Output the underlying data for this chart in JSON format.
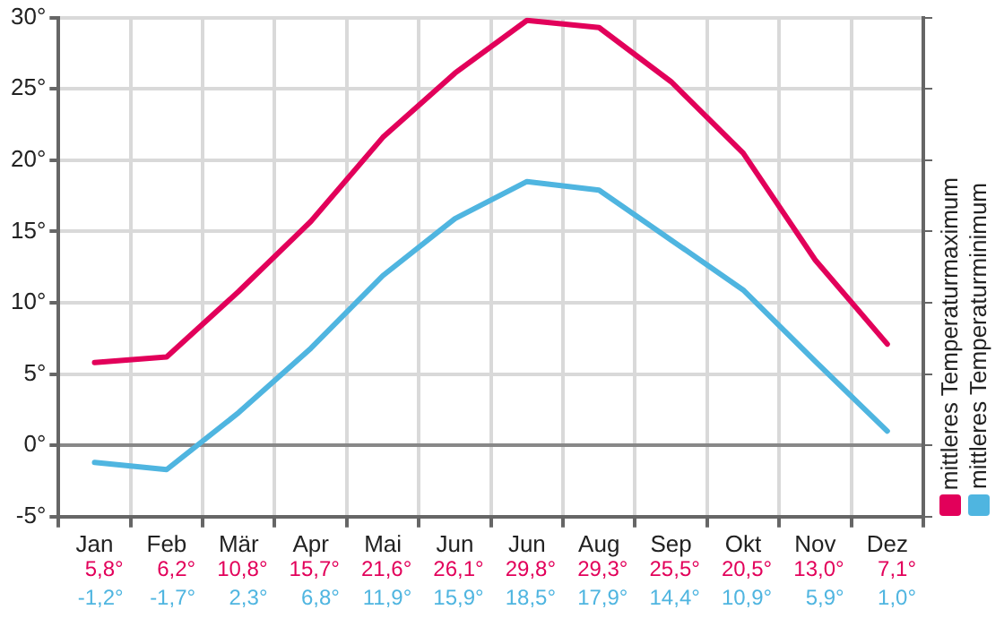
{
  "chart_data": {
    "type": "line",
    "categories": [
      "Jan",
      "Feb",
      "Mär",
      "Apr",
      "Mai",
      "Jun",
      "Jun",
      "Aug",
      "Sep",
      "Okt",
      "Nov",
      "Dez"
    ],
    "series": [
      {
        "name": "mittleres Temperaturmaximum",
        "color": "#e2005a",
        "values": [
          5.8,
          6.2,
          10.8,
          15.7,
          21.6,
          26.1,
          29.8,
          29.3,
          25.5,
          20.5,
          13.0,
          7.1
        ],
        "value_labels": [
          "5,8°",
          "6,2°",
          "10,8°",
          "15,7°",
          "21,6°",
          "26,1°",
          "29,8°",
          "29,3°",
          "25,5°",
          "20,5°",
          "13,0°",
          "7,1°"
        ]
      },
      {
        "name": "mittleres Temperaturminimum",
        "color": "#4fb5e0",
        "values": [
          -1.2,
          -1.7,
          2.3,
          6.8,
          11.9,
          15.9,
          18.5,
          17.9,
          14.4,
          10.9,
          5.9,
          1.0
        ],
        "value_labels": [
          "-1,2°",
          "-1,7°",
          "2,3°",
          "6,8°",
          "11,9°",
          "15,9°",
          "18,5°",
          "17,9°",
          "14,4°",
          "10,9°",
          "5,9°",
          "1,0°"
        ]
      }
    ],
    "ylim": [
      -5,
      30
    ],
    "yticks": [
      {
        "value": -5,
        "label": "-5°"
      },
      {
        "value": 0,
        "label": "0°"
      },
      {
        "value": 5,
        "label": "5°"
      },
      {
        "value": 10,
        "label": "10°"
      },
      {
        "value": 15,
        "label": "15°"
      },
      {
        "value": 20,
        "label": "20°"
      },
      {
        "value": 25,
        "label": "25°"
      },
      {
        "value": 30,
        "label": "30°"
      }
    ],
    "grid": true,
    "legend": "right",
    "marker": "none",
    "line_style": "solid"
  }
}
